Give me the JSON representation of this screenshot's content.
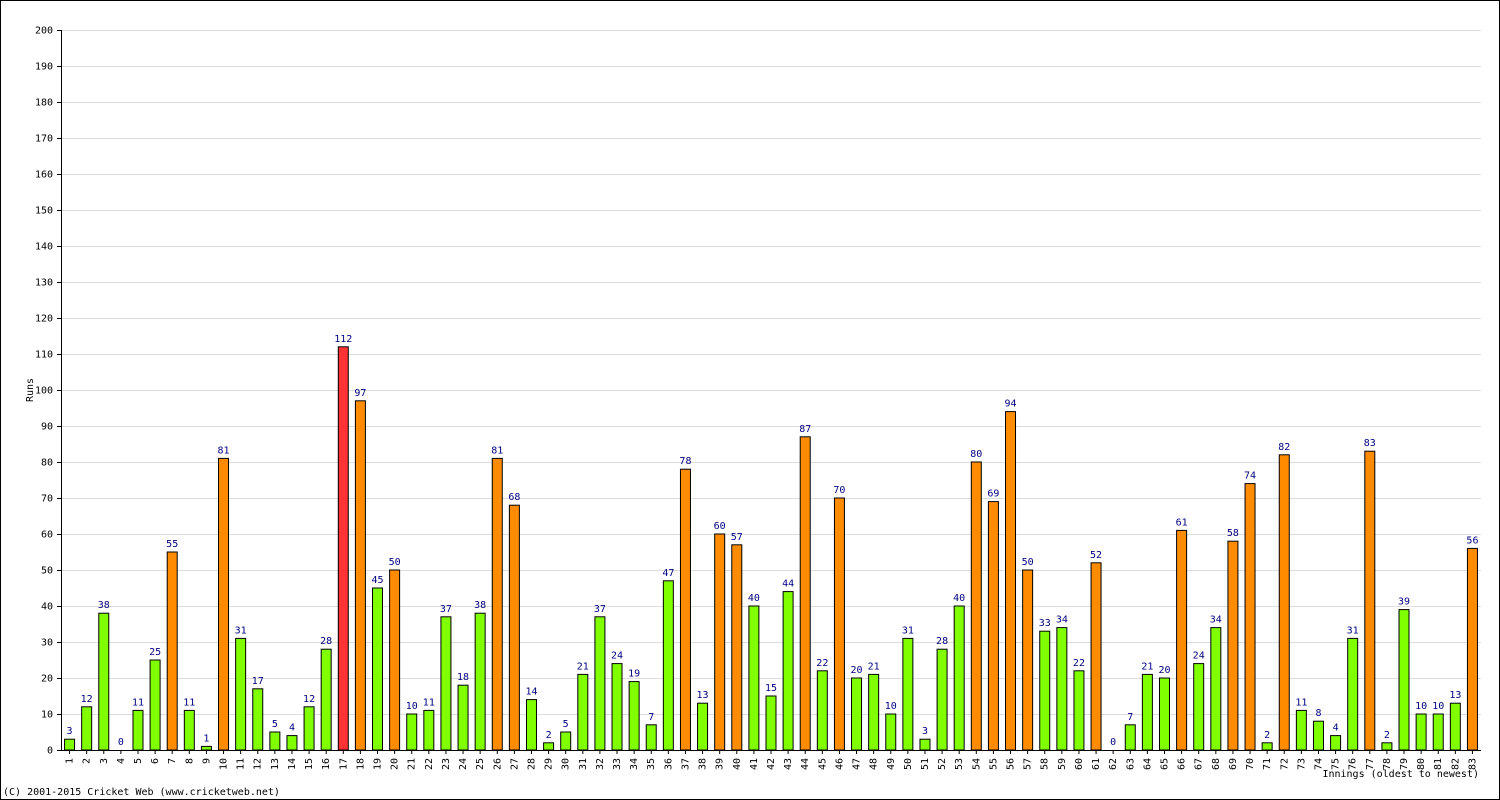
{
  "chart_data": {
    "type": "bar",
    "y_label": "Runs",
    "x_label": "Innings (oldest to newest)",
    "source": "(C) 2001-2015 Cricket Web (www.cricketweb.net)",
    "categories": [
      "1",
      "2",
      "3",
      "4",
      "5",
      "6",
      "7",
      "8",
      "9",
      "10",
      "11",
      "12",
      "13",
      "14",
      "15",
      "16",
      "17",
      "18",
      "19",
      "20",
      "21",
      "22",
      "23",
      "24",
      "25",
      "26",
      "27",
      "28",
      "29",
      "30",
      "31",
      "32",
      "33",
      "34",
      "35",
      "36",
      "37",
      "38",
      "39",
      "40",
      "41",
      "42",
      "43",
      "44",
      "45",
      "46",
      "47",
      "48",
      "49",
      "50",
      "51",
      "52",
      "53",
      "54",
      "55",
      "56",
      "57",
      "58",
      "59",
      "60",
      "61",
      "62",
      "63",
      "64",
      "65",
      "66",
      "67",
      "68",
      "69",
      "70",
      "71",
      "72",
      "73",
      "74",
      "75",
      "76",
      "77",
      "78",
      "79",
      "80",
      "81",
      "82",
      "83"
    ],
    "values": [
      3,
      12,
      38,
      0,
      11,
      25,
      55,
      11,
      1,
      81,
      31,
      17,
      5,
      4,
      12,
      28,
      112,
      97,
      45,
      50,
      10,
      11,
      37,
      18,
      38,
      81,
      68,
      14,
      2,
      5,
      21,
      37,
      24,
      19,
      7,
      47,
      78,
      13,
      60,
      57,
      40,
      15,
      44,
      87,
      22,
      70,
      20,
      21,
      10,
      31,
      3,
      28,
      40,
      80,
      69,
      94,
      50,
      33,
      34,
      22,
      52,
      0,
      7,
      21,
      20,
      61,
      24,
      34,
      58,
      74,
      2,
      82,
      11,
      8,
      4,
      31,
      83,
      2,
      39,
      10,
      10,
      13,
      56
    ],
    "colors": [
      "#80ff00",
      "#80ff00",
      "#80ff00",
      "#80ff00",
      "#80ff00",
      "#80ff00",
      "#ff8c00",
      "#80ff00",
      "#80ff00",
      "#ff8c00",
      "#80ff00",
      "#80ff00",
      "#80ff00",
      "#80ff00",
      "#80ff00",
      "#80ff00",
      "#ff3333",
      "#ff8c00",
      "#80ff00",
      "#ff8c00",
      "#80ff00",
      "#80ff00",
      "#80ff00",
      "#80ff00",
      "#80ff00",
      "#ff8c00",
      "#ff8c00",
      "#80ff00",
      "#80ff00",
      "#80ff00",
      "#80ff00",
      "#80ff00",
      "#80ff00",
      "#80ff00",
      "#80ff00",
      "#80ff00",
      "#ff8c00",
      "#80ff00",
      "#ff8c00",
      "#ff8c00",
      "#80ff00",
      "#80ff00",
      "#80ff00",
      "#ff8c00",
      "#80ff00",
      "#ff8c00",
      "#80ff00",
      "#80ff00",
      "#80ff00",
      "#80ff00",
      "#80ff00",
      "#80ff00",
      "#80ff00",
      "#ff8c00",
      "#ff8c00",
      "#ff8c00",
      "#ff8c00",
      "#80ff00",
      "#80ff00",
      "#80ff00",
      "#ff8c00",
      "#80ff00",
      "#80ff00",
      "#80ff00",
      "#80ff00",
      "#ff8c00",
      "#80ff00",
      "#80ff00",
      "#ff8c00",
      "#ff8c00",
      "#80ff00",
      "#ff8c00",
      "#80ff00",
      "#80ff00",
      "#80ff00",
      "#80ff00",
      "#ff8c00",
      "#80ff00",
      "#80ff00",
      "#80ff00",
      "#80ff00",
      "#80ff00",
      "#ff8c00"
    ],
    "ylim": [
      0,
      200
    ],
    "yticks": [
      0,
      10,
      20,
      30,
      40,
      50,
      60,
      70,
      80,
      90,
      100,
      110,
      120,
      130,
      140,
      150,
      160,
      170,
      180,
      190,
      200
    ],
    "grid": true
  }
}
